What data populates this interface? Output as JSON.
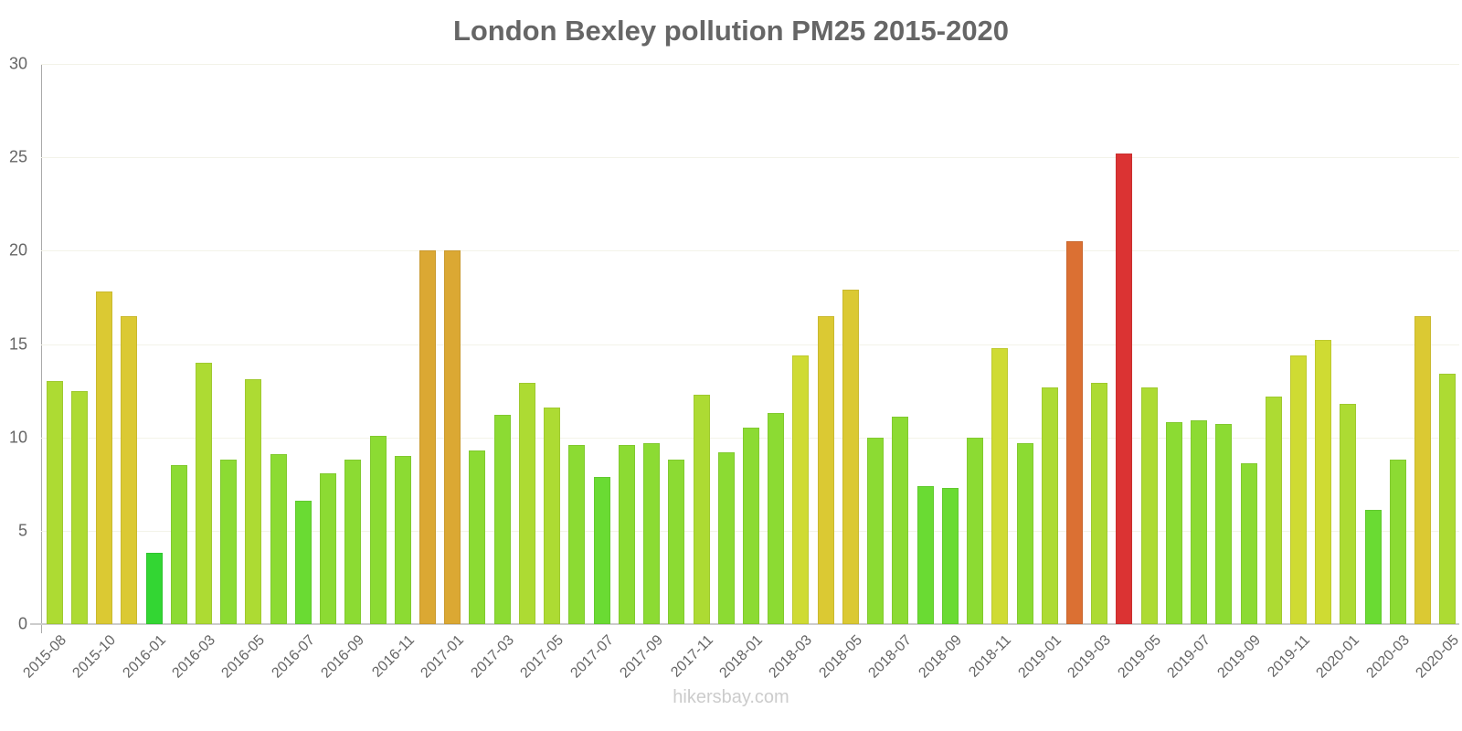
{
  "chart_data": {
    "type": "bar",
    "title": "London Bexley pollution PM25 2015-2020",
    "xlabel": "",
    "ylabel": "",
    "ylim": [
      0,
      30
    ],
    "yticks": [
      0,
      5,
      10,
      15,
      20,
      25,
      30
    ],
    "grid": true,
    "legend": null,
    "categories": [
      "2015-08",
      "",
      "2015-10",
      "",
      "2016-01",
      "",
      "2016-03",
      "",
      "2016-05",
      "",
      "2016-07",
      "",
      "2016-09",
      "",
      "2016-11",
      "",
      "2017-01",
      "",
      "2017-03",
      "",
      "2017-05",
      "",
      "2017-07",
      "",
      "2017-09",
      "",
      "2017-11",
      "",
      "2018-01",
      "",
      "2018-03",
      "",
      "2018-05",
      "",
      "2018-07",
      "",
      "2018-09",
      "",
      "2018-11",
      "",
      "2019-01",
      "",
      "2019-03",
      "",
      "2019-05",
      "",
      "2019-07",
      "",
      "2019-09",
      "",
      "2019-11",
      "",
      "2020-01",
      "",
      "2020-03",
      "",
      "2020-05"
    ],
    "values": [
      13.0,
      12.5,
      17.8,
      16.5,
      3.8,
      8.5,
      14.0,
      8.8,
      13.1,
      9.1,
      6.6,
      8.1,
      8.8,
      10.1,
      9.0,
      20.0,
      20.0,
      9.3,
      11.2,
      12.9,
      11.6,
      9.6,
      7.9,
      9.6,
      9.7,
      8.8,
      12.3,
      9.2,
      10.5,
      11.3,
      14.4,
      16.5,
      17.9,
      10.0,
      11.1,
      7.4,
      7.3,
      10.0,
      14.8,
      9.7,
      12.7,
      20.5,
      12.9,
      25.2,
      12.7,
      10.8,
      10.9,
      10.7,
      8.6,
      12.2,
      14.4,
      15.2,
      11.8,
      6.1,
      8.8,
      16.5,
      13.4
    ],
    "color_scale": [
      {
        "max": 5,
        "color": "#33d633"
      },
      {
        "max": 8,
        "color": "#6adb33"
      },
      {
        "max": 11.5,
        "color": "#8cdb33"
      },
      {
        "max": 14,
        "color": "#addb33"
      },
      {
        "max": 15.5,
        "color": "#cfdb33"
      },
      {
        "max": 19,
        "color": "#dbc933"
      },
      {
        "max": 20.2,
        "color": "#dba833"
      },
      {
        "max": 22,
        "color": "#db7033"
      },
      {
        "max": 100,
        "color": "#db3333"
      }
    ]
  },
  "watermark": "hikersbay.com"
}
